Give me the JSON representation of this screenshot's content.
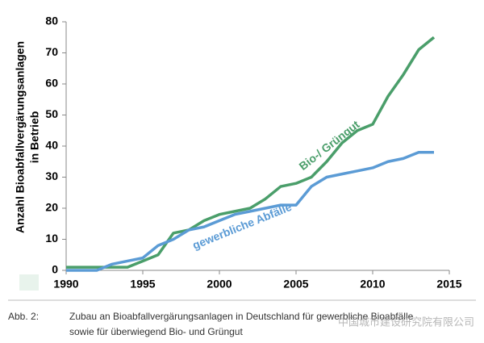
{
  "chart_data": {
    "type": "line",
    "ylabel": [
      "Anzahl Bioabfallvergärungsanlagen",
      "in Betrieb"
    ],
    "x": [
      1990,
      1991,
      1992,
      1993,
      1994,
      1995,
      1996,
      1997,
      1998,
      1999,
      2000,
      2001,
      2002,
      2003,
      2004,
      2005,
      2006,
      2007,
      2008,
      2009,
      2010,
      2011,
      2012,
      2013,
      2014
    ],
    "series": [
      {
        "name": "Bio-/ Grüngut",
        "color": "#4a9e6a",
        "values": [
          1,
          1,
          1,
          1,
          1,
          3,
          5,
          12,
          13,
          16,
          18,
          19,
          20,
          23,
          27,
          28,
          30,
          35,
          41,
          45,
          47,
          56,
          63,
          71,
          75
        ]
      },
      {
        "name": "gewerbliche Abfälle",
        "color": "#5b9bd5",
        "values": [
          0,
          0,
          0,
          2,
          3,
          4,
          8,
          10,
          13,
          14,
          16,
          18,
          19,
          20,
          21,
          21,
          27,
          30,
          31,
          32,
          33,
          35,
          36,
          38,
          38
        ]
      }
    ],
    "xlim": [
      1990,
      2015
    ],
    "xticks": [
      1990,
      1995,
      2000,
      2005,
      2010,
      2015
    ],
    "ylim": [
      0,
      80
    ],
    "yticks": [
      0,
      10,
      20,
      30,
      40,
      50,
      60,
      70,
      80
    ],
    "grid": false,
    "caption": {
      "label": "Abb. 2:",
      "lines": [
        "Zubau an Bioabfallvergärungsanlagen in Deutschland für gewerbliche Bioabfälle",
        "sowie für überwiegend Bio- und Grüngut"
      ]
    },
    "watermark": "中国城市建设研究院有限公司"
  }
}
